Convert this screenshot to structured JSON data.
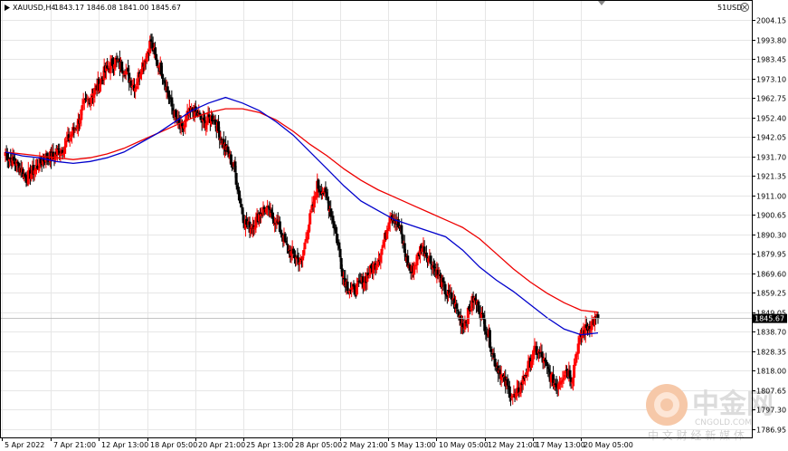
{
  "header": {
    "symbol": "XAUUSD,H4",
    "ohlc": "1843.17 1846.08 1841.00 1845.67",
    "right_label": "51USD"
  },
  "watermark": {
    "title": "中金网",
    "url": "CNGOLD.COM",
    "subtitle": "中 文 财 经 新 媒 体"
  },
  "current_price_label": "1845.67",
  "colors": {
    "bull": "#ff0000",
    "bear": "#000000",
    "ma_fast": "#0000cc",
    "ma_slow": "#ee0000",
    "grid": "#e6e6e6"
  },
  "chart_data": {
    "type": "candlestick",
    "title": "XAUUSD,H4",
    "ylim": [
      1783,
      2008
    ],
    "y_ticks": [
      "2004.15",
      "1993.80",
      "1983.45",
      "1973.10",
      "1962.75",
      "1952.40",
      "1942.05",
      "1931.70",
      "1921.35",
      "1911.00",
      "1900.65",
      "1890.30",
      "1879.95",
      "1869.60",
      "1859.25",
      "1849.05",
      "1838.70",
      "1828.35",
      "1818.00",
      "1807.65",
      "1797.30",
      "1786.95"
    ],
    "x_ticks": [
      "5 Apr 2022",
      "7 Apr 21:00",
      "12 Apr 13:00",
      "18 Apr 05:00",
      "20 Apr 21:00",
      "25 Apr 13:00",
      "28 Apr 05:00",
      "2 May 21:00",
      "5 May 13:00",
      "10 May 05:00",
      "12 May 21:00",
      "17 May 13:00",
      "20 May 05:00"
    ],
    "close_path": [
      1934,
      1930,
      1928,
      1925,
      1920,
      1923,
      1926,
      1929,
      1932,
      1931,
      1934,
      1936,
      1940,
      1945,
      1950,
      1958,
      1962,
      1966,
      1970,
      1976,
      1979,
      1983,
      1980,
      1978,
      1972,
      1969,
      1978,
      1985,
      1993,
      1982,
      1978,
      1968,
      1958,
      1950,
      1945,
      1953,
      1956,
      1954,
      1949,
      1951,
      1953,
      1945,
      1938,
      1932,
      1926,
      1910,
      1897,
      1894,
      1897,
      1902,
      1904,
      1900,
      1898,
      1892,
      1884,
      1880,
      1878,
      1875,
      1892,
      1903,
      1916,
      1914,
      1908,
      1898,
      1885,
      1868,
      1862,
      1860,
      1863,
      1866,
      1870,
      1874,
      1879,
      1888,
      1902,
      1898,
      1892,
      1878,
      1870,
      1876,
      1884,
      1880,
      1875,
      1870,
      1864,
      1858,
      1856,
      1849,
      1842,
      1848,
      1856,
      1852,
      1844,
      1836,
      1824,
      1818,
      1812,
      1807,
      1803,
      1809,
      1816,
      1823,
      1829,
      1826,
      1820,
      1814,
      1810,
      1815,
      1819,
      1814,
      1830,
      1838,
      1841,
      1844,
      1845.67
    ],
    "ma_fast": [
      1934,
      1932,
      1931,
      1929,
      1928,
      1929,
      1931,
      1934,
      1939,
      1944,
      1950,
      1956,
      1960,
      1963,
      1960,
      1956,
      1950,
      1943,
      1934,
      1925,
      1916,
      1908,
      1903,
      1898,
      1895,
      1892,
      1889,
      1882,
      1873,
      1866,
      1860,
      1853,
      1846,
      1840,
      1837,
      1838
    ],
    "ma_slow": [
      1934,
      1933,
      1932,
      1931,
      1930,
      1931,
      1933,
      1936,
      1940,
      1944,
      1948,
      1952,
      1955,
      1957,
      1957,
      1955,
      1951,
      1945,
      1938,
      1932,
      1925,
      1919,
      1914,
      1910,
      1906,
      1902,
      1898,
      1894,
      1888,
      1880,
      1872,
      1865,
      1859,
      1854,
      1850,
      1849
    ]
  }
}
